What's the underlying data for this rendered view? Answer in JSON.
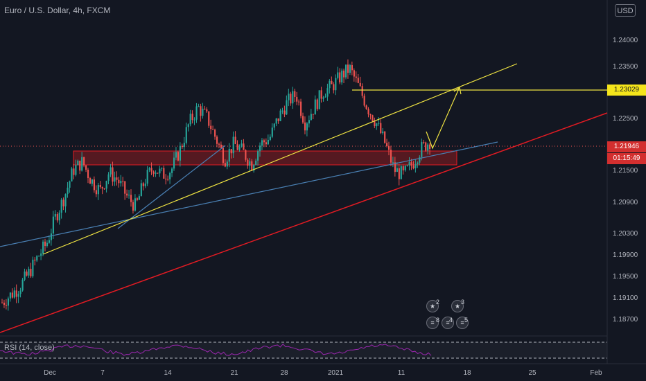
{
  "header": {
    "symbol_title": "Euro / U.S. Dollar, 4h, FXCM",
    "currency_button": "USD"
  },
  "indicator": {
    "rsi_label": "RSI (14, close)"
  },
  "price_axis": {
    "ticks": [
      "1.24000",
      "1.23500",
      "1.22500",
      "1.21500",
      "1.20900",
      "1.20300",
      "1.19900",
      "1.19500",
      "1.19100",
      "1.18700"
    ]
  },
  "time_axis": {
    "ticks": [
      "Dec",
      "7",
      "14",
      "21",
      "28",
      "2021",
      "11",
      "18",
      "25",
      "Feb"
    ]
  },
  "price_tags": {
    "target": "1.23029",
    "current": "1.21946",
    "countdown": "01:15:49"
  },
  "events": {
    "badge_top_left_count": "2",
    "badge_top_right_count": "3",
    "badge_bottom_counts": [
      "8",
      "4",
      "5"
    ]
  },
  "colors": {
    "background": "#131722",
    "bull": "#26a69a",
    "bear": "#ef5350",
    "trend_yellow": "#f0e442",
    "trend_blue": "#4a80b4",
    "trend_red": "#e31b23",
    "zone_fill": "#7a1a22",
    "rsi_line": "#9c27b0",
    "target_tag": "#f5e51b",
    "current_tag": "#d32f2f"
  },
  "chart_data": {
    "type": "candlestick",
    "title": "Euro / U.S. Dollar, 4h, FXCM",
    "yticks": [
      1.24,
      1.235,
      1.225,
      1.215,
      1.209,
      1.203,
      1.199,
      1.195,
      1.191,
      1.187
    ],
    "xticks": [
      "Dec",
      "7",
      "14",
      "21",
      "28",
      "2021",
      "11",
      "18",
      "25",
      "Feb"
    ],
    "annotated_levels": {
      "target": 1.23029,
      "current": 1.21946
    },
    "supply_demand_zone": [
      1.216,
      1.2185
    ],
    "close_path": [
      1.19,
      1.1915,
      1.193,
      1.1955,
      1.1985,
      1.201,
      1.206,
      1.21,
      1.215,
      1.2165,
      1.213,
      1.211,
      1.2145,
      1.213,
      1.21,
      1.208,
      1.213,
      1.2155,
      1.214,
      1.215,
      1.219,
      1.224,
      1.227,
      1.225,
      1.221,
      1.217,
      1.22,
      1.2185,
      1.216,
      1.22,
      1.221,
      1.225,
      1.228,
      1.2295,
      1.224,
      1.227,
      1.23,
      1.231,
      1.233,
      1.2345,
      1.231,
      1.227,
      1.224,
      1.22,
      1.215,
      1.214,
      1.216,
      1.219,
      1.2205
    ]
  }
}
